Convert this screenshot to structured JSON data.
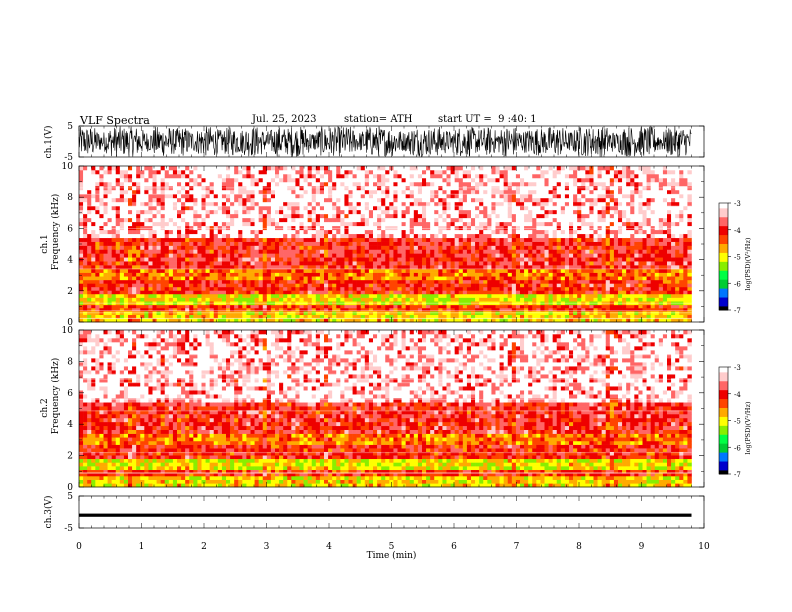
{
  "header": {
    "title": "VLF Spectra",
    "date": "Jul. 25, 2023",
    "station": "station= ATH",
    "start": "start UT =  9 :40: 1"
  },
  "chart_data": [
    {
      "type": "line",
      "panel": "ch1-waveform",
      "ylabel": "ch.1(V)",
      "ylim": [
        -5,
        5
      ],
      "yticks": [
        -5,
        5
      ],
      "xlim": [
        0,
        10
      ],
      "x_end": 9.8,
      "description_values": {
        "amplitude_min": -5,
        "amplitude_max": 5
      },
      "color": "#000000"
    },
    {
      "type": "heatmap",
      "panel": "ch1-spectrogram",
      "ylabel_top": "ch.1",
      "ylabel": "Frequency (kHz)",
      "ylim": [
        0,
        10
      ],
      "yticks": [
        0,
        2,
        4,
        6,
        8,
        10
      ],
      "xlim": [
        0,
        10
      ],
      "x_end": 9.8,
      "colorbar": {
        "label": "log(PSD)(V²/Hz)",
        "range": [
          -7,
          -3
        ],
        "ticks": [
          "-3",
          "-4",
          "-5",
          "-6",
          "-7"
        ]
      },
      "band_levels": [
        {
          "fmin": 0,
          "fmax": 0.7,
          "level": -4.9
        },
        {
          "fmin": 0.7,
          "fmax": 1.1,
          "level": -4.2
        },
        {
          "fmin": 1.1,
          "fmax": 1.8,
          "level": -5.0
        },
        {
          "fmin": 1.8,
          "fmax": 2.7,
          "level": -4.1
        },
        {
          "fmin": 2.7,
          "fmax": 3.4,
          "level": -4.5
        },
        {
          "fmin": 3.4,
          "fmax": 5.4,
          "level": -3.9
        },
        {
          "fmin": 5.4,
          "fmax": 10,
          "level": -3.5
        }
      ],
      "vertical_events_min": [
        0.85,
        1.75,
        2.95,
        3.95,
        6.95,
        8.5
      ]
    },
    {
      "type": "heatmap",
      "panel": "ch2-spectrogram",
      "ylabel_top": "ch.2",
      "ylabel": "Frequency (kHz)",
      "ylim": [
        0,
        10
      ],
      "yticks": [
        0,
        2,
        4,
        6,
        8,
        10
      ],
      "xlim": [
        0,
        10
      ],
      "x_end": 9.8,
      "colorbar": {
        "label": "log(PSD)(V²/Hz)",
        "range": [
          -7,
          -3
        ],
        "ticks": [
          "-3",
          "-4",
          "-5",
          "-6",
          "-7"
        ]
      },
      "band_levels": [
        {
          "fmin": 0,
          "fmax": 0.7,
          "level": -4.9
        },
        {
          "fmin": 0.7,
          "fmax": 1.1,
          "level": -4.2
        },
        {
          "fmin": 1.1,
          "fmax": 1.8,
          "level": -5.0
        },
        {
          "fmin": 1.8,
          "fmax": 2.7,
          "level": -4.1
        },
        {
          "fmin": 2.7,
          "fmax": 3.4,
          "level": -4.5
        },
        {
          "fmin": 3.4,
          "fmax": 5.4,
          "level": -3.9
        },
        {
          "fmin": 5.4,
          "fmax": 10,
          "level": -3.5
        }
      ],
      "vertical_events_min": [
        0.85,
        1.75,
        2.95,
        3.95,
        6.95,
        8.5
      ]
    },
    {
      "type": "line",
      "panel": "ch3-waveform",
      "ylabel": "ch.3(V)",
      "ylim": [
        -5,
        5
      ],
      "yticks": [
        -5,
        5
      ],
      "xlim": [
        0,
        10
      ],
      "x_end": 9.8,
      "xlabel": "Time (min)",
      "xticks": [
        "0",
        "1",
        "2",
        "3",
        "4",
        "5",
        "6",
        "7",
        "8",
        "9",
        "10"
      ],
      "level": -1,
      "color": "#000000"
    }
  ],
  "colors": {
    "scale": [
      "#000000",
      "#0000cc",
      "#0077ff",
      "#00cc33",
      "#00ff44",
      "#88ee00",
      "#ffff00",
      "#ffaa00",
      "#ff4400",
      "#ee0000",
      "#ff6666",
      "#ffcccc",
      "#ffffff"
    ]
  }
}
